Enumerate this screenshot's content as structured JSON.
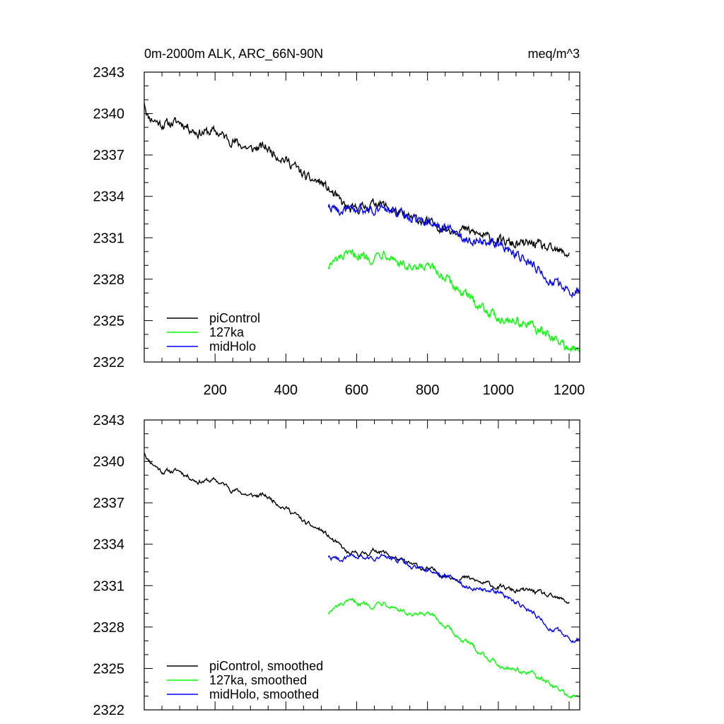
{
  "chart_data": [
    {
      "type": "line",
      "title": "0m-2000m ALK, ARC_66N-90N",
      "units": "meq/m^3",
      "xlim": [
        0,
        1230
      ],
      "ylim": [
        2322,
        2343
      ],
      "x_ticks": [
        "200",
        "400",
        "600",
        "800",
        "1000",
        "1200"
      ],
      "y_ticks": [
        "2322",
        "2325",
        "2328",
        "2331",
        "2334",
        "2337",
        "2340",
        "2343"
      ],
      "legend_position": "bottom-left",
      "series": [
        {
          "name": "piControl",
          "color": "#000000",
          "x": [
            0,
            10,
            50,
            100,
            150,
            200,
            250,
            300,
            340,
            380,
            420,
            460,
            500,
            540,
            580,
            620,
            660,
            700,
            740,
            780,
            820,
            860,
            900,
            950,
            1000,
            1050,
            1100,
            1150,
            1200
          ],
          "y": [
            2340.9,
            2339.8,
            2339.2,
            2339.4,
            2338.6,
            2338.7,
            2338.0,
            2337.4,
            2337.6,
            2336.9,
            2336.3,
            2335.3,
            2335.0,
            2334.0,
            2333.0,
            2333.2,
            2333.6,
            2333.0,
            2332.5,
            2332.3,
            2331.9,
            2331.6,
            2331.6,
            2331.2,
            2330.8,
            2330.5,
            2330.6,
            2330.1,
            2329.8
          ]
        },
        {
          "name": "127ka",
          "color": "#00ff00",
          "x": [
            520,
            560,
            600,
            640,
            680,
            720,
            760,
            800,
            840,
            880,
            920,
            960,
            1000,
            1050,
            1100,
            1150,
            1200,
            1230
          ],
          "y": [
            2329.0,
            2329.6,
            2329.8,
            2329.5,
            2330.0,
            2329.2,
            2328.6,
            2328.9,
            2328.3,
            2327.4,
            2326.6,
            2325.9,
            2325.2,
            2325.0,
            2324.5,
            2323.8,
            2323.0,
            2322.8
          ]
        },
        {
          "name": "midHolo",
          "color": "#0000ff",
          "x": [
            520,
            560,
            600,
            640,
            680,
            720,
            760,
            800,
            840,
            880,
            920,
            960,
            1000,
            1050,
            1100,
            1150,
            1200,
            1230
          ],
          "y": [
            2333.3,
            2332.9,
            2333.0,
            2333.0,
            2333.1,
            2332.8,
            2332.4,
            2332.2,
            2331.8,
            2331.4,
            2330.8,
            2330.8,
            2330.6,
            2329.8,
            2329.0,
            2327.8,
            2327.2,
            2327.2
          ]
        }
      ]
    },
    {
      "type": "line",
      "title": "",
      "xlim": [
        0,
        1230
      ],
      "ylim": [
        2322,
        2343
      ],
      "y_ticks": [
        "2322",
        "2325",
        "2328",
        "2331",
        "2334",
        "2337",
        "2340",
        "2343"
      ],
      "legend_position": "bottom-left",
      "series": [
        {
          "name": "piControl, smoothed",
          "color": "#000000",
          "x": [
            0,
            10,
            50,
            100,
            150,
            200,
            250,
            300,
            340,
            380,
            420,
            460,
            500,
            540,
            580,
            620,
            660,
            700,
            740,
            780,
            820,
            860,
            900,
            950,
            1000,
            1050,
            1100,
            1150,
            1200
          ],
          "y": [
            2340.7,
            2340.2,
            2339.3,
            2339.3,
            2338.6,
            2338.6,
            2338.0,
            2337.5,
            2337.5,
            2337.0,
            2336.3,
            2335.4,
            2335.0,
            2334.1,
            2333.2,
            2333.3,
            2333.6,
            2333.1,
            2332.6,
            2332.3,
            2332.0,
            2331.7,
            2331.6,
            2331.2,
            2330.9,
            2330.6,
            2330.6,
            2330.1,
            2329.8
          ]
        },
        {
          "name": "127ka, smoothed",
          "color": "#00ff00",
          "x": [
            520,
            560,
            600,
            640,
            680,
            720,
            760,
            800,
            840,
            880,
            920,
            960,
            1000,
            1050,
            1100,
            1150,
            1200,
            1230
          ],
          "y": [
            2329.1,
            2329.6,
            2329.8,
            2329.6,
            2329.9,
            2329.3,
            2328.7,
            2328.9,
            2328.3,
            2327.4,
            2326.7,
            2326.0,
            2325.3,
            2325.0,
            2324.5,
            2323.8,
            2323.0,
            2322.9
          ]
        },
        {
          "name": "midHolo, smoothed",
          "color": "#0000ff",
          "x": [
            520,
            560,
            600,
            640,
            680,
            720,
            760,
            800,
            840,
            880,
            920,
            960,
            1000,
            1050,
            1100,
            1150,
            1200,
            1230
          ],
          "y": [
            2333.1,
            2332.9,
            2333.0,
            2333.0,
            2333.1,
            2332.8,
            2332.4,
            2332.2,
            2331.8,
            2331.4,
            2330.9,
            2330.8,
            2330.6,
            2329.8,
            2329.0,
            2327.9,
            2327.2,
            2327.2
          ]
        }
      ]
    }
  ]
}
